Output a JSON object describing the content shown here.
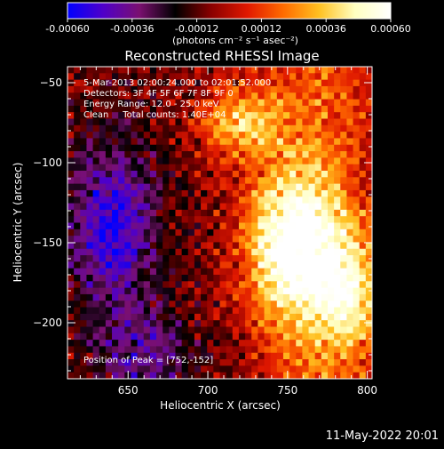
{
  "colorbar": {
    "tick_labels": [
      "-0.00060",
      "-0.00036",
      "-0.00012",
      "0.00012",
      "0.00036",
      "0.00060"
    ],
    "unit_label": "(photons cm⁻² s⁻¹ asec⁻²)",
    "colors": [
      "#0000ff",
      "#5000c8",
      "#7a1070",
      "#000000",
      "#8a0000",
      "#e01800",
      "#ff6a00",
      "#ffc020",
      "#ffffc0",
      "#ffffff"
    ]
  },
  "annotations": {
    "time_range": "5-Mar-2013 02:00:24.000 to 02:01:52.000",
    "detectors": "Detectors: 3F 4F 5F 6F 7F 8F 9F 0",
    "energy": "Energy Range: 12.0 - 25.0 keV",
    "method_counts": "Clean     Total counts: 1.40E+04",
    "peak": "Position of Peak = [752,-152]"
  },
  "footer_date": "11-May-2022 20:01",
  "chart_data": {
    "type": "heatmap",
    "title": "Reconstructed RHESSI Image",
    "xlabel": "Heliocentric X (arcsec)",
    "ylabel": "Heliocentric Y (arcsec)",
    "xlim": [
      612,
      803
    ],
    "ylim": [
      -235,
      -40
    ],
    "x_ticks": [
      {
        "value": 650,
        "label": "650"
      },
      {
        "value": 700,
        "label": "700"
      },
      {
        "value": 750,
        "label": "750"
      },
      {
        "value": 800,
        "label": "800"
      }
    ],
    "y_ticks": [
      {
        "value": -50,
        "label": "−50"
      },
      {
        "value": -100,
        "label": "−100"
      },
      {
        "value": -150,
        "label": "−150"
      },
      {
        "value": -200,
        "label": "−200"
      }
    ],
    "value_range": [
      -0.0006,
      0.0006
    ],
    "peak_position": [
      752,
      -152
    ]
  }
}
